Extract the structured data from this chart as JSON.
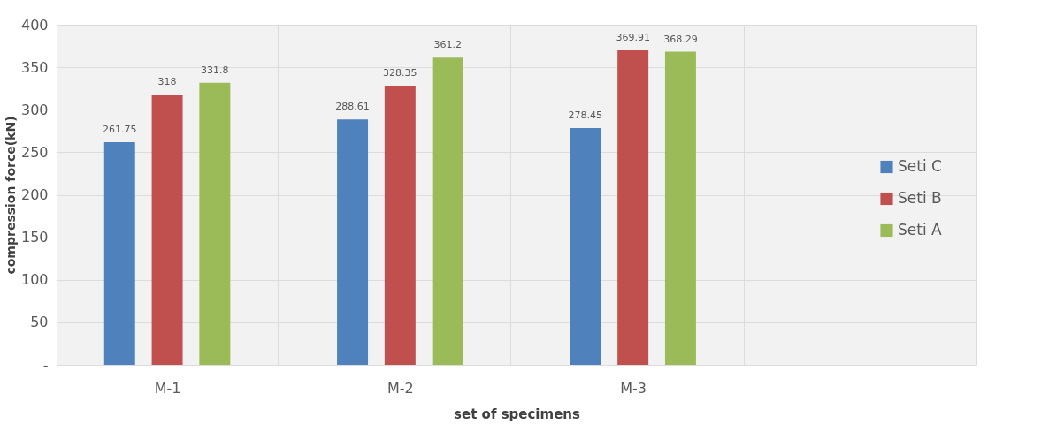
{
  "chart_data": {
    "type": "bar",
    "xlabel": "set of specimens",
    "ylabel": "compression force(kN)",
    "categories": [
      "M-1",
      "M-2",
      "M-3",
      null
    ],
    "series": [
      {
        "name": "Seti C",
        "color": "#4f81bd",
        "values": [
          261.75,
          288.61,
          278.45,
          null
        ]
      },
      {
        "name": "Seti B",
        "color": "#c0504d",
        "values": [
          318,
          328.35,
          369.91,
          null
        ]
      },
      {
        "name": "Seti A",
        "color": "#9bbb59",
        "values": [
          331.8,
          361.2,
          368.29,
          null
        ]
      }
    ],
    "ylim": [
      0,
      400
    ],
    "yticks": [
      {
        "value": 0,
        "label": "-"
      },
      50,
      100,
      150,
      200,
      250,
      300,
      350,
      400
    ],
    "grid": true,
    "legend": "right",
    "data_labels": true
  }
}
